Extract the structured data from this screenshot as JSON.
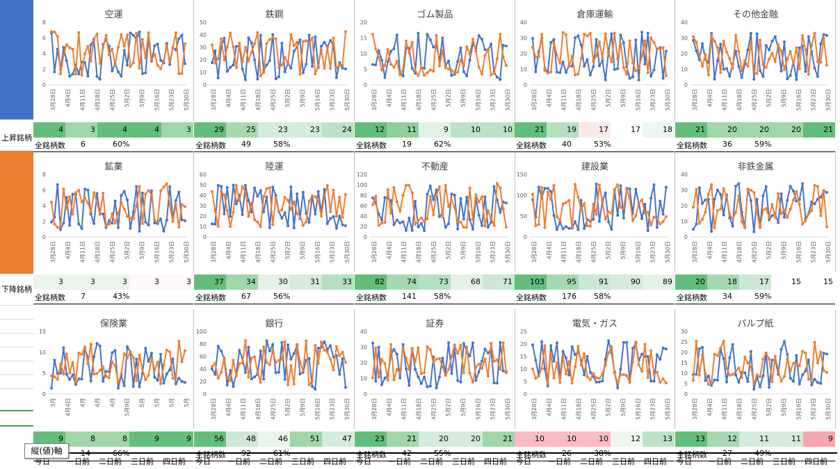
{
  "row_labels": {
    "up": "上昇銘柄",
    "down": "下降銘柄"
  },
  "row_colors": {
    "up": "#4472c4",
    "down": "#ed7d31"
  },
  "series_colors": {
    "blue": "#4472c4",
    "orange": "#ed7d31"
  },
  "total_label": "全銘柄数",
  "x_labels_standard": [
    "3月28日",
    "4月4日",
    "4月11日",
    "4月18日",
    "4月25日",
    "5月2日",
    "5月9日",
    "5月16日",
    "5月23日",
    "5月30日"
  ],
  "footer_labels": [
    "今日",
    "一日前",
    "二日前",
    "三日前",
    "四日前"
  ],
  "tooltip": "縦(値)軸",
  "panels": [
    {
      "title": "空運",
      "yticks": [
        0,
        2,
        4,
        6,
        8
      ],
      "xlabels": [
        "3月28日",
        "4月4日",
        "4月11日",
        "4月18日",
        "4月25日",
        "5月2日",
        "5月9日",
        "5月16日",
        "5月23日",
        "5月30日"
      ],
      "stats": [
        "4",
        "3",
        "4",
        "4",
        "3"
      ],
      "total": "6",
      "pct": "60%",
      "heat": [
        "#63be7b",
        "#9fd6aa",
        "#63be7b",
        "#63be7b",
        "#9fd6aa"
      ]
    },
    {
      "title": "鉄鋼",
      "yticks": [
        0,
        10,
        20,
        30,
        40,
        50
      ],
      "xlabels": [
        "3月28日",
        "4月4日",
        "4月11日",
        "4月18日",
        "4月25日",
        "5月2日",
        "5月9日",
        "5月16日",
        "5月23日",
        "5月30日"
      ],
      "stats": [
        "29",
        "25",
        "23",
        "23",
        "24"
      ],
      "total": "49",
      "pct": "58%",
      "heat": [
        "#63be7b",
        "#a6d9b1",
        "#d4ecd9",
        "#d4ecd9",
        "#bde3c5"
      ]
    },
    {
      "title": "ゴム製品",
      "yticks": [
        0,
        5,
        10,
        15,
        20
      ],
      "xlabels": [
        "3月28日",
        "4月4日",
        "4月11日",
        "4月18日",
        "4月25日",
        "5月2日",
        "5月9日",
        "5月16日",
        "5月23日",
        "5月30日"
      ],
      "stats": [
        "12",
        "11",
        "9",
        "10",
        "10"
      ],
      "total": "19",
      "pct": "62%",
      "heat": [
        "#63be7b",
        "#8fcf9c",
        "#e2f2e5",
        "#bde3c5",
        "#bde3c5"
      ]
    },
    {
      "title": "倉庫運輸",
      "yticks": [
        0,
        10,
        20,
        30,
        40
      ],
      "xlabels": [
        "3月28日",
        "4月4日",
        "4月11日",
        "4月18日",
        "4月25日",
        "5月2日",
        "5月9日",
        "5月16日",
        "5月23日",
        "5月30日"
      ],
      "stats": [
        "21",
        "19",
        "17",
        "17",
        "18"
      ],
      "total": "40",
      "pct": "53%",
      "heat": [
        "#63be7b",
        "#b5e0bf",
        "#fce8ea",
        "#ffffff",
        "#eef7f0"
      ]
    },
    {
      "title": "その他金融",
      "yticks": [
        0,
        10,
        20,
        30,
        40
      ],
      "xlabels": [
        "3月28日",
        "4月4日",
        "4月11日",
        "4月18日",
        "4月25日",
        "5月2日",
        "5月9日",
        "5月16日",
        "5月23日",
        "5月30日"
      ],
      "stats": [
        "21",
        "20",
        "20",
        "20",
        "21"
      ],
      "total": "36",
      "pct": "59%",
      "heat": [
        "#63be7b",
        "#9fd6aa",
        "#9fd6aa",
        "#9fd6aa",
        "#63be7b"
      ]
    },
    {
      "title": "鉱業",
      "yticks": [
        0,
        2,
        4,
        6,
        8
      ],
      "xlabels": [
        "3月28日",
        "4月4日",
        "4月11日",
        "4月18日",
        "4月25日",
        "5月2日",
        "5月9日",
        "5月16日",
        "5月23日",
        "5月30日"
      ],
      "stats": [
        "3",
        "3",
        "3",
        "3",
        "3"
      ],
      "total": "7",
      "pct": "43%",
      "heat": [
        "#e9f5ec",
        "#e9f5ec",
        "#e9f5ec",
        "#fff7f8",
        "#fff7f8"
      ]
    },
    {
      "title": "陸運",
      "yticks": [
        0,
        10,
        20,
        30,
        40,
        50,
        60
      ],
      "xlabels": [
        "3月28日",
        "4月4日",
        "4月11日",
        "4月18日",
        "4月25日",
        "5月2日",
        "5月9日",
        "5月16日",
        "5月23日",
        "5月30日"
      ],
      "stats": [
        "37",
        "34",
        "30",
        "31",
        "33"
      ],
      "total": "67",
      "pct": "56%",
      "heat": [
        "#63be7b",
        "#9fd6aa",
        "#e2f2e5",
        "#d4ecd9",
        "#b5e0bf"
      ]
    },
    {
      "title": "不動産",
      "yticks": [
        0,
        20,
        40,
        60,
        80,
        100,
        120
      ],
      "xlabels": [
        "3月28日",
        "4月4日",
        "4月11日",
        "4月18日",
        "4月25日",
        "5月2日",
        "5月9日",
        "5月16日",
        "5月23日",
        "5月30日"
      ],
      "stats": [
        "82",
        "74",
        "73",
        "68",
        "71"
      ],
      "total": "141",
      "pct": "58%",
      "heat": [
        "#63be7b",
        "#a6d9b1",
        "#b5e0bf",
        "#e2f2e5",
        "#cce8d3"
      ]
    },
    {
      "title": "建設業",
      "yticks": [
        0,
        50,
        100,
        150
      ],
      "xlabels": [
        "3月28日",
        "4月4日",
        "4月11日",
        "4月18日",
        "4月25日",
        "5月2日",
        "5月9日",
        "5月16日",
        "5月23日",
        "5月30日"
      ],
      "stats": [
        "103",
        "95",
        "91",
        "90",
        "89"
      ],
      "total": "176",
      "pct": "58%",
      "heat": [
        "#63be7b",
        "#a6d9b1",
        "#cce8d3",
        "#d4ecd9",
        "#e2f2e5"
      ]
    },
    {
      "title": "非鉄金属",
      "yticks": [
        0,
        10,
        20,
        30,
        40
      ],
      "xlabels": [
        "3月28日",
        "4月4日",
        "4月11日",
        "4月18日",
        "4月25日",
        "5月2日",
        "5月9日",
        "5月16日",
        "5月23日",
        "5月30日"
      ],
      "stats": [
        "20",
        "18",
        "17",
        "15",
        "15"
      ],
      "total": "34",
      "pct": "59%",
      "heat": [
        "#63be7b",
        "#a6d9b1",
        "#cce8d3",
        "#ffffff",
        "#ffffff"
      ]
    },
    {
      "title": "保険業",
      "yticks": [
        0,
        5,
        10,
        15
      ],
      "xlabels": [
        "3月",
        "4月4日",
        "4月",
        "4月",
        "4月",
        "5月9日",
        "5月",
        "5月",
        "5月",
        "5月"
      ],
      "stats": [
        "9",
        "8",
        "8",
        "9",
        "9"
      ],
      "total": "14",
      "pct": "66%",
      "heat": [
        "#63be7b",
        "#9fd6aa",
        "#9fd6aa",
        "#63be7b",
        "#63be7b"
      ]
    },
    {
      "title": "銀行",
      "yticks": [
        0,
        20,
        40,
        60,
        80,
        100
      ],
      "xlabels": [
        "3月28日",
        "4月4日",
        "4月11日",
        "4月18日",
        "4月25日",
        "5月2日",
        "5月9日",
        "5月16日",
        "5月23日",
        "5月30日"
      ],
      "stats": [
        "56",
        "48",
        "46",
        "51",
        "47"
      ],
      "total": "92",
      "pct": "61%",
      "heat": [
        "#63be7b",
        "#cce8d3",
        "#e9f5ec",
        "#9fd6aa",
        "#d4ecd9"
      ]
    },
    {
      "title": "証券",
      "yticks": [
        0,
        10,
        20,
        30,
        40
      ],
      "xlabels": [
        "3月28日",
        "4月4日",
        "4月11日",
        "4月18日",
        "4月25日",
        "5月2日",
        "5月9日",
        "5月16日",
        "5月23日",
        "5月30日"
      ],
      "stats": [
        "23",
        "21",
        "20",
        "20",
        "21"
      ],
      "total": "42",
      "pct": "55%",
      "heat": [
        "#63be7b",
        "#9fd6aa",
        "#d4ecd9",
        "#d4ecd9",
        "#9fd6aa"
      ]
    },
    {
      "title": "電気・ガス",
      "yticks": [
        0,
        5,
        10,
        15,
        20,
        25
      ],
      "xlabels": [
        "3月28日",
        "4月4日",
        "4月11日",
        "4月18日",
        "4月25日",
        "5月2日",
        "5月9日",
        "5月16日",
        "5月23日",
        "5月30日"
      ],
      "stats": [
        "10",
        "10",
        "10",
        "12",
        "13"
      ],
      "total": "26",
      "pct": "38%",
      "heat": [
        "#f8bcc1",
        "#f8bcc1",
        "#f8bcc1",
        "#eef7f0",
        "#bde3c5"
      ]
    },
    {
      "title": "パルプ紙",
      "yticks": [
        0,
        5,
        10,
        15,
        20,
        25,
        30
      ],
      "xlabels": [
        "3月28日",
        "4月4日",
        "4月11日",
        "4月18日",
        "4月25日",
        "5月2日",
        "5月9日",
        "5月16日",
        "5月23日",
        "5月30日"
      ],
      "stats": [
        "13",
        "12",
        "11",
        "11",
        "9"
      ],
      "total": "27",
      "pct": "49%",
      "heat": [
        "#63be7b",
        "#a6d9b1",
        "#d4ecd9",
        "#d4ecd9",
        "#f8a6ad"
      ]
    }
  ]
}
